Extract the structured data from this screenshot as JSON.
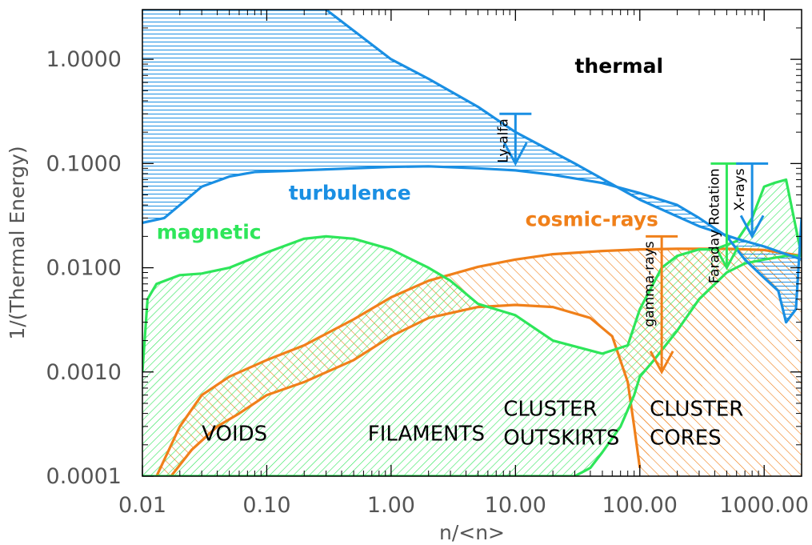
{
  "chart_data": {
    "type": "area",
    "xlabel": "n/<n>",
    "ylabel": "1/(Thermal Energy)",
    "xscale": "log",
    "yscale": "log",
    "xlim": [
      0.01,
      2000
    ],
    "ylim": [
      0.0001,
      3.0
    ],
    "x_ticks": [
      0.01,
      0.1,
      1,
      10,
      100,
      1000
    ],
    "x_tick_labels": [
      "0.01",
      "0.10",
      "1.00",
      "10.00",
      "100.00",
      "1000.00"
    ],
    "y_ticks": [
      0.0001,
      0.001,
      0.01,
      0.1,
      1
    ],
    "y_tick_labels": [
      "0.0001",
      "0.0010",
      "0.0100",
      "0.1000",
      "1.0000"
    ],
    "grid": false,
    "colors": {
      "turbulence": "#1a8fe3",
      "magnetic": "#2ee65a",
      "cosmic_rays": "#f0801a",
      "axis": "#555555"
    },
    "series": [
      {
        "name": "turbulence",
        "color": "#1a8fe3",
        "hatch": "horizontal",
        "upper": {
          "x": [
            0.01,
            0.1,
            0.3,
            1,
            2,
            5,
            10,
            30,
            100,
            300,
            600,
            1000,
            2000
          ],
          "y": [
            3.0,
            3.0,
            3.0,
            1.0,
            0.65,
            0.35,
            0.2,
            0.1,
            0.045,
            0.025,
            0.019,
            0.016,
            0.012
          ]
        },
        "lower": {
          "x": [
            0.01,
            0.015,
            0.02,
            0.03,
            0.05,
            0.08,
            0.15,
            0.3,
            1,
            2,
            5,
            10,
            20,
            50,
            100,
            200,
            300,
            500,
            700,
            1000,
            1300,
            1500,
            1800,
            2000
          ],
          "y": [
            0.027,
            0.03,
            0.04,
            0.06,
            0.075,
            0.083,
            0.085,
            0.088,
            0.093,
            0.094,
            0.09,
            0.086,
            0.078,
            0.065,
            0.052,
            0.04,
            0.03,
            0.02,
            0.012,
            0.008,
            0.006,
            0.003,
            0.004,
            0.03
          ]
        }
      },
      {
        "name": "magnetic",
        "color": "#2ee65a",
        "hatch": "diagonal-back",
        "upper": {
          "x": [
            0.01,
            0.011,
            0.013,
            0.02,
            0.03,
            0.05,
            0.1,
            0.2,
            0.3,
            0.5,
            1,
            2,
            3,
            5,
            10,
            20,
            50,
            80,
            100,
            150,
            200,
            300,
            400,
            600,
            800,
            1000,
            1200,
            1500,
            2000
          ],
          "y": [
            0.001,
            0.005,
            0.007,
            0.0085,
            0.0088,
            0.01,
            0.014,
            0.019,
            0.02,
            0.019,
            0.015,
            0.01,
            0.0075,
            0.0045,
            0.0035,
            0.002,
            0.0015,
            0.0018,
            0.004,
            0.01,
            0.013,
            0.015,
            0.015,
            0.018,
            0.03,
            0.06,
            0.065,
            0.07,
            0.013
          ]
        },
        "lower": {
          "x": [
            0.01,
            0.02,
            0.1,
            1,
            10,
            20,
            30,
            40,
            50,
            70,
            90,
            100,
            130,
            200,
            300,
            500,
            700,
            1000,
            1500,
            2000
          ],
          "y": [
            0.0001,
            0.0001,
            0.0001,
            0.0001,
            0.0001,
            0.0001,
            0.0001,
            0.00012,
            0.00017,
            0.0003,
            0.0006,
            0.0009,
            0.0013,
            0.0025,
            0.005,
            0.009,
            0.011,
            0.012,
            0.013,
            0.013
          ]
        }
      },
      {
        "name": "cosmic-rays",
        "color": "#f0801a",
        "hatch": "diagonal",
        "upper": {
          "x": [
            0.013,
            0.02,
            0.03,
            0.05,
            0.1,
            0.2,
            0.5,
            1,
            2,
            5,
            10,
            20,
            50,
            100,
            200,
            500,
            1000,
            2000
          ],
          "y": [
            0.0001,
            0.0003,
            0.0006,
            0.0009,
            0.0013,
            0.0018,
            0.0032,
            0.0052,
            0.0075,
            0.0102,
            0.012,
            0.0135,
            0.0145,
            0.015,
            0.0152,
            0.0152,
            0.0148,
            0.013
          ]
        },
        "lower": {
          "x": [
            0.017,
            0.025,
            0.04,
            0.06,
            0.1,
            0.2,
            0.5,
            1,
            2,
            5,
            10,
            20,
            40,
            60,
            80,
            90,
            100
          ],
          "y": [
            0.0001,
            0.00018,
            0.0003,
            0.0004,
            0.0006,
            0.0008,
            0.0013,
            0.0022,
            0.0033,
            0.0042,
            0.0044,
            0.0042,
            0.0033,
            0.0022,
            0.0008,
            0.0003,
            0.00012
          ]
        },
        "cores_fill_upper_to": 0.0001
      }
    ],
    "annotations": {
      "components": [
        {
          "text": "thermal",
          "x": 30,
          "y": 0.74,
          "color": "#000000"
        },
        {
          "text": "turbulence",
          "x": 0.15,
          "y": 0.045,
          "color": "#1a8fe3"
        },
        {
          "text": "magnetic",
          "x": 0.013,
          "y": 0.019,
          "color": "#2ee65a"
        },
        {
          "text": "cosmic-rays",
          "x": 12,
          "y": 0.025,
          "color": "#f0801a"
        }
      ],
      "regions": [
        {
          "lines": [
            "VOIDS"
          ],
          "x": 0.03,
          "y": 0.00022
        },
        {
          "lines": [
            "FILAMENTS"
          ],
          "x": 0.65,
          "y": 0.00022
        },
        {
          "lines": [
            "CLUSTER",
            "OUTSKIRTS"
          ],
          "x": 8,
          "y": 0.00038
        },
        {
          "lines": [
            "CLUSTER",
            "CORES"
          ],
          "x": 120,
          "y": 0.00038
        }
      ],
      "observations": [
        {
          "text": "Ly-alfa",
          "x": 10,
          "y_top": 0.3,
          "y_bottom": 0.1,
          "color": "#1a8fe3"
        },
        {
          "text": "gamma-rays",
          "x": 150,
          "y_top": 0.02,
          "y_bottom": 0.001,
          "color": "#f0801a"
        },
        {
          "text": "Faraday Rotation",
          "x": 500,
          "y_top": 0.1,
          "y_bottom": 0.01,
          "color": "#2ee65a"
        },
        {
          "text": "X-rays",
          "x": 800,
          "y_top": 0.1,
          "y_bottom": 0.02,
          "color": "#1a8fe3"
        }
      ]
    }
  }
}
